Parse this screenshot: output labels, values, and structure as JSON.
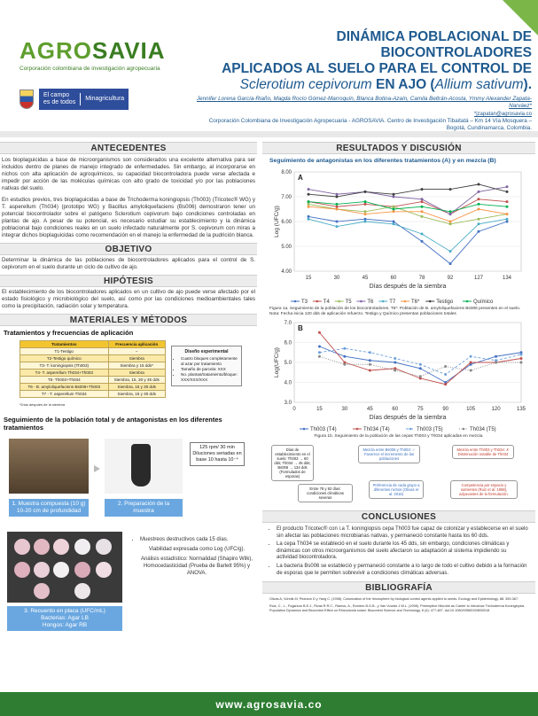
{
  "header": {
    "logo_text_a": "AGRO",
    "logo_text_b": "SAVIA",
    "logo_sub": "Corporación colombiana de investigación agropecuaria",
    "gov_line1": "El campo",
    "gov_line2": "es de todos",
    "gov_ministry": "Minagricultura",
    "title_line1": "DINÁMICA POBLACIONAL DE BIOCONTROLADORES",
    "title_line2": "APLICADOS AL SUELO PARA EL CONTROL DE",
    "title_line3a": "Sclerotium cepivorum",
    "title_line3b": " EN AJO (",
    "title_line3c": "Allium sativum",
    "title_line3d": ").",
    "authors": "Jennifer Lorena García-Riaño, Magda Rocío Gómez-Marroquín, Blanca Botina-Azaín, Camila Beltrán-Acosta, Ymmy Alexander Zapata-Narváez*",
    "email": "*jzapatan@agrosavia.co",
    "affiliation": "Corporación Colombiana de Investigación Agropecuaria - AGROSAVIA. Centro de Investigación Tibaitatá – Km 14 Vía Mosquera – Bogotá, Cundinamarca, Colombia."
  },
  "left": {
    "antecedentes_head": "ANTECEDENTES",
    "antecedentes_p1": "Los bioplaguicidas a base de microorganismos son considerados una excelente alternativa para ser incluidos dentro de planes de manejo integrado de enfermedades. Sin embargo, al incorporarse en nichos con alta aplicación de agroquímicos, su capacidad biocontroladora puede verse afectada e impedir por acción de las moléculas químicas con alto grado de toxicidad y/o por las poblaciones nativas del suelo.",
    "antecedentes_p2": "En estudios previos, tres bioplaguicidas a base de Trichoderma koningiopsis (Th003) (Tricotec® WG) y T. asperellum (Th034) (prototipo WG) y Bacillus amyloliquefaciens (Bs006) demostraron tener un potencial biocontrolador sobre el patógeno Sclerotium cepivorum bajo condiciones controladas en plantas de ajo. A pesar de su potencial, es necesario estudiar su establecimiento y la dinámica poblacional bajo condiciones reales en un suelo infectado naturalmente por S. cepivorum con miras a integrar dichos bioplaguicidas como recomendación en el manejo la enfermedad de la pudrición blanca.",
    "objetivo_head": "OBJETIVO",
    "objetivo_p": "Determinar la dinámica de las poblaciones de biocontroladores aplicados para el control de S. cepivorum en el suelo durante un ciclo de cultivo de ajo.",
    "hipotesis_head": "HIPÓTESIS",
    "hipotesis_p": "El establecimiento de los biocontroladores aplicados en un cultivo de ajo puede verse afectado por el estado fisiológico y microbiológico del suelo, así como por las condiciones medioambientales tales como la precipitación, radiación solar y temperatura.",
    "metodos_head": "MATERIALES Y MÉTODOS",
    "tratamientos_title": "Tratamientos y frecuencias de aplicación",
    "table_headers": [
      "Tratamientos",
      "Frecuencia aplicación"
    ],
    "table_rows": [
      [
        "T1-Testigo",
        "–"
      ],
      [
        "T2-Testigo químico",
        "Siembra"
      ],
      [
        "T3- T. koningiopsis (Th003)",
        "Siembra y 15 dds*"
      ],
      [
        "T4- T. asperellum Th034+Th003",
        "Siembra"
      ],
      [
        "T5- Th003+Th034",
        "Siembra, 15, 30 y 45 dds"
      ],
      [
        "T6 - B. amyloliquefaciens Bs006+Th003",
        "Siembra, 15 y 30 dds"
      ],
      [
        "T7 - T. asperellum Th034",
        "Siembra, 15 y 30 dds"
      ]
    ],
    "table_note": "*Días después de la siembra",
    "design_title": "Diseño experimental",
    "design_items": [
      "Cuatro bloques completamente al azar por tratamiento",
      "Tamaño de parcela: XXX",
      "No. plantas/tratamiento/bloque: XXX/XXX/XXX"
    ],
    "seguimiento_title": "Seguimiento de la población total y de antagonistas en los diferentes tratamientos",
    "dilution_text": "125 rpm/ 30 min Diluciones seriadas en base 10 hasta 10⁻⁴",
    "step1": "1. Muestra compuesta (10 g) 10-20 cm de profundidad",
    "step2": "2. Preparación de la muestra",
    "step3_a": "3. Recuento en placa (UFC/mL)",
    "step3_b": "Bacterias: Agar LB",
    "step3_c": "Hongos: Agar RB",
    "method_bullets": [
      "Muestreos destructivos cada 15 días.",
      "Viabilidad expresada como Log (UFC/g).",
      "Análisis estadístico: Normalidad (Shapiro Wilk), Homocedasticidad (Prueba de Barlett 95%) y ANOVA."
    ]
  },
  "right": {
    "resultados_head": "RESULTADOS Y DISCUSIÓN",
    "chart_a_title": "Seguimiento de antagonistas en los diferentes tratamientos (A) y en mezcla (B)",
    "chart_a_label": "A",
    "chart_a_ylabel": "Log (UFC/g)",
    "chart_a_xlabel": "Días después de la siembra",
    "chart_a_caption": "Figura 1a. Seguimiento de la población de los biocontroladores. T6*: Población de B. amyloliquefaciens Bs006 presentes en el suelo. Nota: Fecha inicia 120 dds de aplicación refuerzo. Testigo y Químico presentan poblaciones totales",
    "chart_b_label": "B",
    "chart_b_ylabel": "Log(UFC/g)",
    "chart_b_xlabel": "Días después de la siembra",
    "chart_b_caption": "Figura 1b. Seguimiento de la población de las cepas Th003 y Th034 aplicadas en mezcla.",
    "notes": [
      "Días de establecimiento en el suelo: Th003 → 60 dds; Th034 → 45 dds; Bs006 → 134 dds (Formulados de esporas)",
      "Mezcla entre Bs006 y Th003: ✓ Favorece el incremento de las poblaciones",
      "Mezcla entre Th003 y Th034: ✗ Disminución notable de Th034",
      "Entre 78 y 92 días: condiciones climáticas severas",
      "Preferencia de cada grupo a diferentes nichos (Olivas et al. 2016)",
      "Competencia por espacio y nutrientes (Ruiz et al. 1998), adyuvantes de la formulación."
    ],
    "conclusiones_head": "CONCLUSIONES",
    "conclusiones": [
      "El producto Tricotec® con i.a T. koningiopsis cepa Th003 fue capaz de colonizar y establecerse en el suelo sin afectar las poblaciones microbianas nativas, y permaneció constante hasta los 60 dds.",
      "La cepa Th034 se estableció en el suelo durante los 45 dds, sin embargo, condiciones climáticas y dinámicas con otros microorganismos del suelo afectaron su adaptación al sistema impidiendo su actividad biocontroladora.",
      "La bacteria Bs006 se estableció y permaneció constante a lo largo de todo el cultivo debido a la formación de esporas que le permiten sobrevivir a condiciones climáticas adversas."
    ],
    "bibliografia_head": "BIBLIOGRAFÍA",
    "bib1": "Olivas A, Vohnik M, Pearson D y Yang C. (1998). Colonization of the rhizosphere by biological control agents applied to seeds. Ecology and Epidemiology, 88: 359-367.",
    "bib2": "Ruiz, C., L., Fugarson B.E.J., Rivas R.R.C., Ramos, A., Romero B.G.B., y Van Vuurde J.W.L. (1998). Preemptive Microbe as Carrier to Introduce Trichoderma Koningiopsis Population Dynamics and Biocontrol Effect on Rhizoctonia solani. Biocontrol Science and Technology, 8 (4): 477-487. doi:10.1080/09583159830018"
  },
  "chart_data": [
    {
      "type": "line",
      "title": "Seguimiento de antagonistas en los diferentes tratamientos (A) y en mezcla (B)",
      "xlabel": "Días después de la siembra",
      "ylabel": "Log (UFC/g)",
      "x": [
        15,
        30,
        45,
        60,
        78,
        92,
        127,
        134
      ],
      "ylim": [
        4.0,
        8.0
      ],
      "legend": "bottom",
      "series": [
        {
          "name": "T3",
          "color": "#4472c4",
          "values": [
            6.2,
            6.0,
            6.1,
            6.0,
            5.2,
            4.3,
            5.6,
            6.0
          ]
        },
        {
          "name": "T4",
          "color": "#c0504d",
          "values": [
            6.8,
            6.6,
            6.7,
            6.6,
            6.8,
            6.3,
            6.9,
            6.8
          ]
        },
        {
          "name": "T5",
          "color": "#9bbb59",
          "values": [
            6.7,
            6.5,
            6.4,
            6.6,
            6.2,
            5.9,
            6.1,
            6.3
          ]
        },
        {
          "name": "T6",
          "color": "#8064a2",
          "values": [
            7.3,
            7.1,
            7.2,
            7.0,
            6.9,
            6.3,
            7.2,
            7.4
          ]
        },
        {
          "name": "T7",
          "color": "#4bacc6",
          "values": [
            6.1,
            5.8,
            6.0,
            5.9,
            5.5,
            4.8,
            5.9,
            6.1
          ]
        },
        {
          "name": "T6*",
          "color": "#f79646",
          "values": [
            6.6,
            6.5,
            6.3,
            6.4,
            6.4,
            6.0,
            6.5,
            6.3
          ]
        },
        {
          "name": "Testigo",
          "color": "#404040",
          "values": [
            7.1,
            7.0,
            7.2,
            7.1,
            7.3,
            7.3,
            7.5,
            7.2
          ]
        },
        {
          "name": "Químico",
          "color": "#00b050",
          "values": [
            6.8,
            6.7,
            6.8,
            6.5,
            6.6,
            6.4,
            6.7,
            6.6
          ]
        }
      ]
    },
    {
      "type": "line",
      "xlabel": "Días después de la siembra",
      "ylabel": "Log(UFC/g)",
      "x": [
        0,
        15,
        30,
        45,
        60,
        75,
        90,
        105,
        120,
        135
      ],
      "ylim": [
        3.0,
        7.0
      ],
      "legend": "bottom",
      "series": [
        {
          "name": "Th003 (T4)",
          "color": "#4472c4",
          "dash": "",
          "values": [
            null,
            5.8,
            5.3,
            5.1,
            5.0,
            4.7,
            4.0,
            4.9,
            5.3,
            5.5
          ]
        },
        {
          "name": "Th034 (T4)",
          "color": "#c0504d",
          "dash": "",
          "values": [
            null,
            6.5,
            5.0,
            4.6,
            4.7,
            4.2,
            3.9,
            5.0,
            5.0,
            5.2
          ]
        },
        {
          "name": "Th003 (T5)",
          "color": "#6fa0dc",
          "dash": "3,2",
          "values": [
            null,
            5.5,
            5.7,
            5.5,
            5.2,
            4.9,
            4.4,
            5.3,
            5.1,
            5.4
          ]
        },
        {
          "name": "Th034 (T5)",
          "color": "#888888",
          "dash": "1,1.5",
          "values": [
            null,
            5.3,
            4.9,
            4.9,
            4.6,
            4.3,
            4.8,
            4.6,
            5.0,
            5.0
          ]
        }
      ]
    }
  ],
  "footer": {
    "url": "www.agrosavia.co"
  }
}
